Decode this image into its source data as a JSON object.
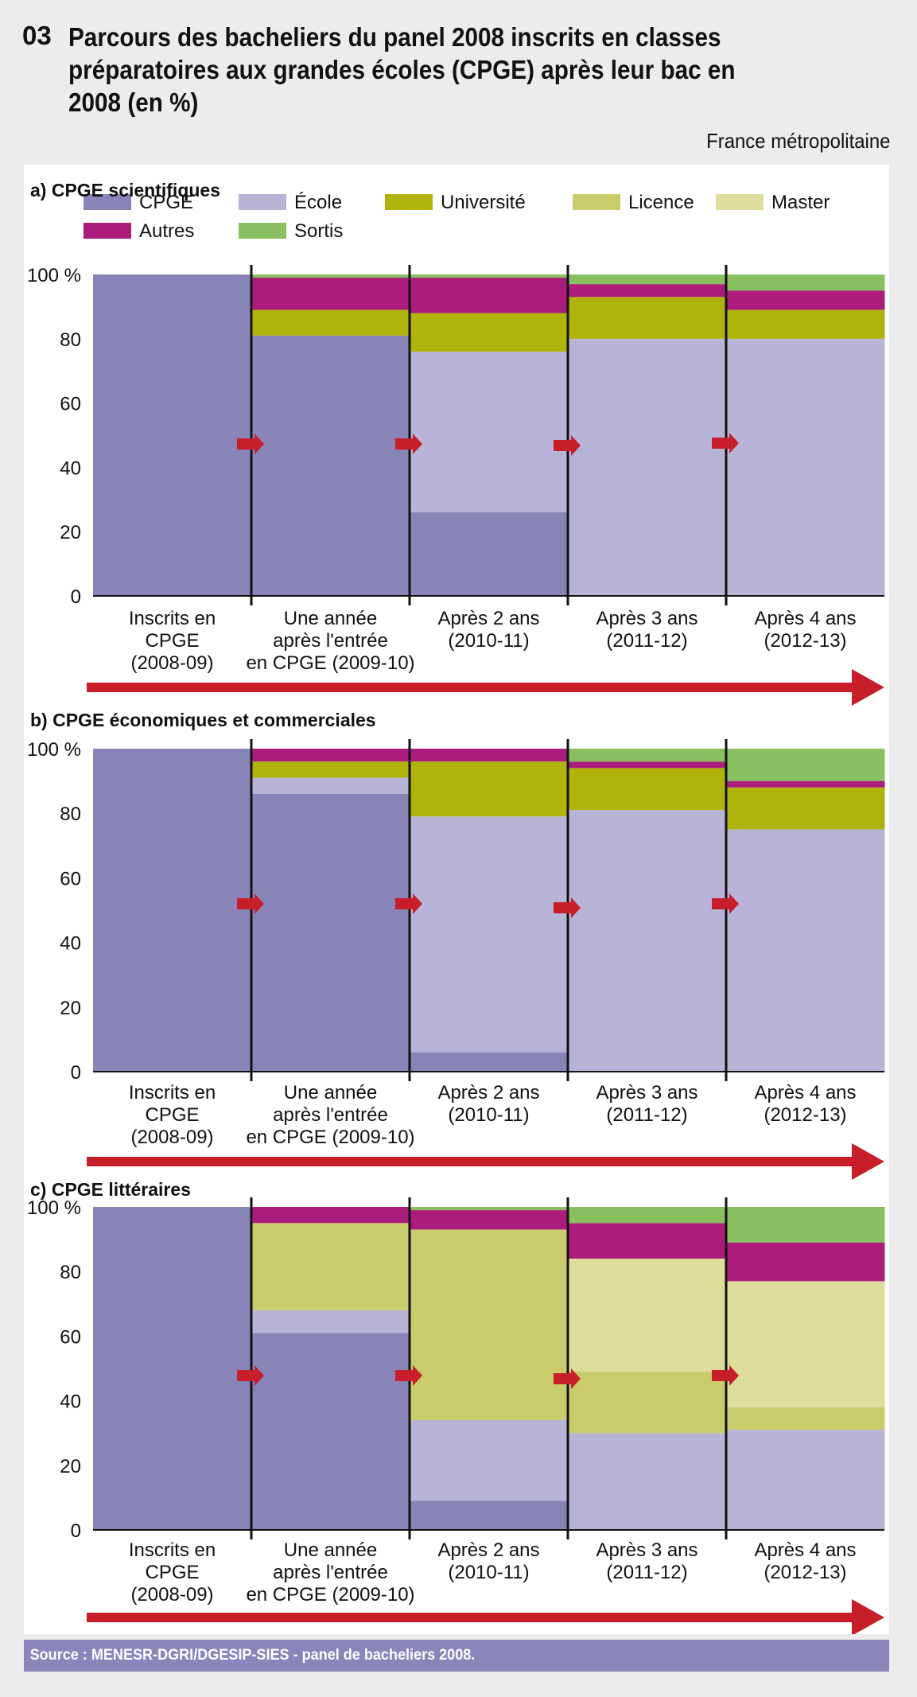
{
  "figure_number": "03",
  "title": "Parcours des bacheliers du panel 2008 inscrits en classes préparatoires aux grandes écoles (CPGE) après leur bac en 2008 (en %)",
  "region": "France métropolitaine",
  "source": "Source : MENESR-DGRI/DGESIP-SIES - panel de bacheliers 2008.",
  "legend": [
    {
      "label": "CPGE",
      "color": "#8884b8"
    },
    {
      "label": "École",
      "color": "#b8b4d8"
    },
    {
      "label": "Université",
      "color": "#b0b40a"
    },
    {
      "label": "Licence",
      "color": "#cacc6c"
    },
    {
      "label": "Master",
      "color": "#dedd9c"
    },
    {
      "label": "Autres",
      "color": "#ac1c7c"
    },
    {
      "label": "Sortis",
      "color": "#88c060"
    }
  ],
  "arrow_color": "#c81e2a",
  "chart_data": [
    {
      "type": "bar",
      "stacked": true,
      "title": "a) CPGE scientifiques",
      "categories": [
        "Inscrits en CPGE (2008-09)",
        "Une année après l'entrée en CPGE (2009-10)",
        "Après 2 ans (2010-11)",
        "Après 3 ans (2011-12)",
        "Après 4 ans (2012-13)"
      ],
      "category_lines": [
        [
          "Inscrits en",
          "CPGE",
          "(2008-09)"
        ],
        [
          "Une année",
          "après l'entrée",
          "en CPGE (2009-10)"
        ],
        [
          "Après 2 ans",
          "(2010-11)"
        ],
        [
          "Après 3 ans",
          "(2011-12)"
        ],
        [
          "Après 4 ans",
          "(2012-13)"
        ]
      ],
      "yticks": [
        "100 %",
        "80",
        "60",
        "40",
        "20",
        "0"
      ],
      "ylim": [
        0,
        100
      ],
      "series": [
        {
          "name": "CPGE",
          "values": [
            100,
            81,
            26,
            0,
            0
          ]
        },
        {
          "name": "École",
          "values": [
            0,
            0,
            50,
            80,
            80
          ]
        },
        {
          "name": "Université",
          "values": [
            0,
            8,
            12,
            13,
            9
          ]
        },
        {
          "name": "Licence",
          "values": [
            0,
            0,
            0,
            0,
            0
          ]
        },
        {
          "name": "Master",
          "values": [
            0,
            0,
            0,
            0,
            0
          ]
        },
        {
          "name": "Autres",
          "values": [
            0,
            10,
            11,
            4,
            6
          ]
        },
        {
          "name": "Sortis",
          "values": [
            0,
            1,
            1,
            3,
            5
          ]
        }
      ]
    },
    {
      "type": "bar",
      "stacked": true,
      "title": "b) CPGE économiques et commerciales",
      "categories": [
        "Inscrits en CPGE (2008-09)",
        "Une année après l'entrée en CPGE (2009-10)",
        "Après 2 ans (2010-11)",
        "Après 3 ans (2011-12)",
        "Après 4 ans (2012-13)"
      ],
      "category_lines": [
        [
          "Inscrits en",
          "CPGE",
          "(2008-09)"
        ],
        [
          "Une année",
          "après l'entrée",
          "en CPGE (2009-10)"
        ],
        [
          "Après 2 ans",
          "(2010-11)"
        ],
        [
          "Après 3 ans",
          "(2011-12)"
        ],
        [
          "Après 4 ans",
          "(2012-13)"
        ]
      ],
      "yticks": [
        "100 %",
        "80",
        "60",
        "40",
        "20",
        "0"
      ],
      "ylim": [
        0,
        100
      ],
      "series": [
        {
          "name": "CPGE",
          "values": [
            100,
            86,
            6,
            0,
            0
          ]
        },
        {
          "name": "École",
          "values": [
            0,
            5,
            73,
            81,
            75
          ]
        },
        {
          "name": "Université",
          "values": [
            0,
            5,
            17,
            13,
            13
          ]
        },
        {
          "name": "Licence",
          "values": [
            0,
            0,
            0,
            0,
            0
          ]
        },
        {
          "name": "Master",
          "values": [
            0,
            0,
            0,
            0,
            0
          ]
        },
        {
          "name": "Autres",
          "values": [
            0,
            4,
            4,
            2,
            2
          ]
        },
        {
          "name": "Sortis",
          "values": [
            0,
            0,
            0,
            4,
            10
          ]
        }
      ]
    },
    {
      "type": "bar",
      "stacked": true,
      "title": "c) CPGE littéraires",
      "categories": [
        "Inscrits en CPGE (2008-09)",
        "Une année après l'entrée en CPGE (2009-10)",
        "Après 2 ans (2010-11)",
        "Après 3 ans (2011-12)",
        "Après 4 ans (2012-13)"
      ],
      "category_lines": [
        [
          "Inscrits en",
          "CPGE",
          "(2008-09)"
        ],
        [
          "Une année",
          "après l'entrée",
          "en CPGE (2009-10)"
        ],
        [
          "Après 2 ans",
          "(2010-11)"
        ],
        [
          "Après 3 ans",
          "(2011-12)"
        ],
        [
          "Après 4 ans",
          "(2012-13)"
        ]
      ],
      "yticks": [
        "100 %",
        "80",
        "60",
        "40",
        "20",
        "0"
      ],
      "ylim": [
        0,
        100
      ],
      "series": [
        {
          "name": "CPGE",
          "values": [
            100,
            61,
            9,
            0,
            0
          ]
        },
        {
          "name": "École",
          "values": [
            0,
            7,
            25,
            30,
            31
          ]
        },
        {
          "name": "Université",
          "values": [
            0,
            0,
            0,
            0,
            0
          ]
        },
        {
          "name": "Licence",
          "values": [
            0,
            27,
            59,
            19,
            7
          ]
        },
        {
          "name": "Master",
          "values": [
            0,
            0,
            0,
            35,
            39
          ]
        },
        {
          "name": "Autres",
          "values": [
            0,
            5,
            6,
            11,
            12
          ]
        },
        {
          "name": "Sortis",
          "values": [
            0,
            0,
            1,
            5,
            11
          ]
        }
      ]
    }
  ]
}
